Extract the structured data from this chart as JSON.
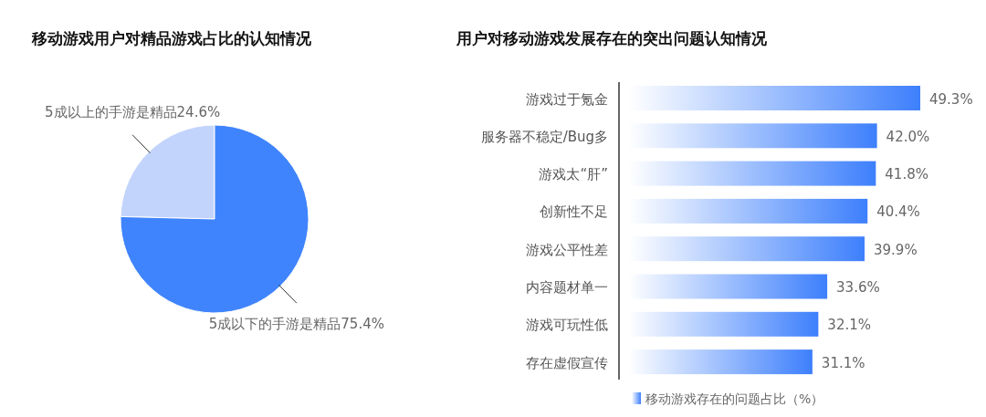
{
  "chart_data": [
    {
      "type": "pie",
      "title": "移动游戏用户对精品游戏占比的认知情况",
      "categories": [
        "5成以上的手游是精品",
        "5成以下的手游是精品"
      ],
      "values": [
        24.6,
        75.4
      ],
      "value_labels": [
        "24.6%",
        "75.4%"
      ],
      "colors": [
        "#c3d4fc",
        "#3f84fd"
      ]
    },
    {
      "type": "bar",
      "orientation": "horizontal",
      "title": "用户对移动游戏发展存在的突出问题认知情况",
      "categories": [
        "游戏过于氪金",
        "服务器不稳定/Bug多",
        "游戏太“肝”",
        "创新性不足",
        "游戏公平性差",
        "内容题材单一",
        "游戏可玩性低",
        "存在虚假宣传"
      ],
      "series": [
        {
          "name": "移动游戏存在的问题占比（%）",
          "color": "#3d7ffc",
          "values": [
            49.3,
            42.0,
            41.8,
            40.4,
            39.9,
            33.6,
            32.1,
            31.1
          ],
          "value_labels": [
            "49.3%",
            "42.0%",
            "41.8%",
            "40.4%",
            "39.9%",
            "33.6%",
            "32.1%",
            "31.1%"
          ]
        }
      ],
      "legend": "bottom"
    }
  ]
}
